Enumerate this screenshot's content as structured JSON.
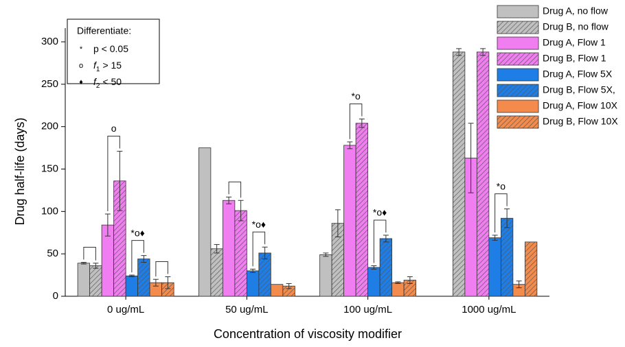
{
  "chart_data": {
    "type": "bar",
    "ylabel": "Drug half-life (days)",
    "xlabel": "Concentration of viscosity modifier",
    "categories": [
      "0 ug/mL",
      "50 ug/mL",
      "100 ug/mL",
      "1000 ug/mL"
    ],
    "ylim": [
      0,
      300
    ],
    "yticks": [
      0,
      50,
      100,
      150,
      200,
      250,
      300
    ],
    "grid": false,
    "legend": "top-right",
    "series": [
      {
        "name": "Drug A, no flow",
        "color": "#c0c0c0",
        "hatch": false,
        "values": [
          39,
          175,
          49,
          null
        ],
        "errors": [
          1,
          null,
          2,
          null
        ]
      },
      {
        "name": "Drug B, no flow",
        "color": "#c0c0c0",
        "hatch": true,
        "values": [
          36,
          56,
          86,
          288
        ],
        "errors": [
          3,
          5,
          16,
          4
        ]
      },
      {
        "name": "Drug A, Flow 1",
        "color": "#f07ef0",
        "hatch": false,
        "values": [
          84,
          113,
          178,
          163
        ],
        "errors": [
          13,
          4,
          4,
          41
        ]
      },
      {
        "name": "Drug B, Flow 1",
        "color": "#f07ef0",
        "hatch": true,
        "values": [
          136,
          101,
          204,
          288
        ],
        "errors": [
          35,
          12,
          5,
          4
        ]
      },
      {
        "name": "Drug A, Flow 5X",
        "color": "#1f7ee6",
        "hatch": false,
        "values": [
          24,
          30,
          34,
          69
        ],
        "errors": [
          1,
          2,
          2,
          3
        ]
      },
      {
        "name": "Drug B, Flow 5X,",
        "color": "#1f7ee6",
        "hatch": true,
        "values": [
          44,
          51,
          68,
          92
        ],
        "errors": [
          4,
          7,
          4,
          11
        ]
      },
      {
        "name": "Drug A, Flow 10X",
        "color": "#f28b4c",
        "hatch": false,
        "values": [
          16,
          14,
          16,
          14
        ],
        "errors": [
          4,
          null,
          1,
          4
        ]
      },
      {
        "name": "Drug B, Flow 10X",
        "color": "#f28b4c",
        "hatch": true,
        "values": [
          16,
          12,
          19,
          64
        ],
        "errors": [
          7,
          3,
          4,
          null
        ]
      }
    ],
    "significance_legend": {
      "title": "Differentiate:",
      "items": [
        {
          "symbol": "*",
          "text": "p < 0.05"
        },
        {
          "symbol": "o",
          "var": "f",
          "sub": "1",
          "text": "> 15"
        },
        {
          "symbol": "♦",
          "var": "f",
          "sub": "2",
          "text": "< 50"
        }
      ]
    },
    "annotations": [
      {
        "group": "0 ug/mL",
        "between": [
          "Drug A, no flow",
          "Drug B, no flow"
        ]
      },
      {
        "group": "0 ug/mL",
        "between": [
          "Drug A, Flow 1",
          "Drug B, Flow 1"
        ],
        "text": "o"
      },
      {
        "group": "0 ug/mL",
        "between": [
          "Drug A, Flow 5X",
          "Drug B, Flow 5X,"
        ],
        "text": "*o♦"
      },
      {
        "group": "0 ug/mL",
        "between": [
          "Drug A, Flow 10X",
          "Drug B, Flow 10X"
        ]
      },
      {
        "group": "50 ug/mL",
        "between": [
          "Drug A, Flow 1",
          "Drug B, Flow 1"
        ]
      },
      {
        "group": "50 ug/mL",
        "between": [
          "Drug A, Flow 5X",
          "Drug B, Flow 5X,"
        ],
        "text": "*o♦"
      },
      {
        "group": "100 ug/mL",
        "between": [
          "Drug A, Flow 1",
          "Drug B, Flow 1"
        ],
        "text": "*o"
      },
      {
        "group": "100 ug/mL",
        "between": [
          "Drug A, Flow 5X",
          "Drug B, Flow 5X,"
        ],
        "text": "*o♦"
      },
      {
        "group": "1000 ug/mL",
        "between": [
          "Drug A, Flow 5X",
          "Drug B, Flow 5X,"
        ],
        "text": "*o"
      }
    ]
  }
}
